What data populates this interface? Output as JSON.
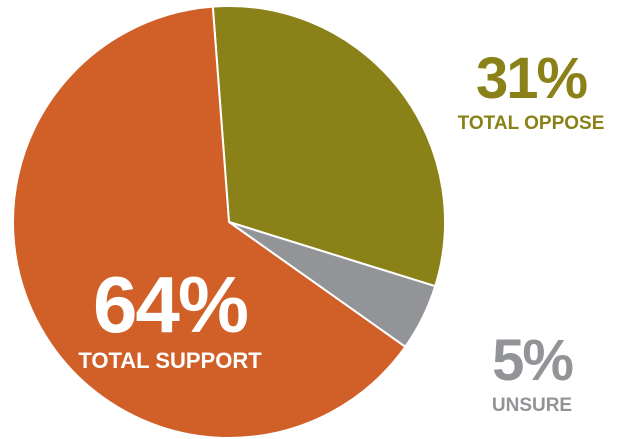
{
  "chart_data": {
    "type": "pie",
    "title": "",
    "slices": [
      {
        "name": "TOTAL OPPOSE",
        "label": "31%",
        "value": 31,
        "color": "#8A8118"
      },
      {
        "name": "UNSURE",
        "label": "5%",
        "value": 5,
        "color": "#929497"
      },
      {
        "name": "TOTAL SUPPORT",
        "label": "64%",
        "value": 64,
        "color": "#D05F28"
      }
    ],
    "start_angle_deg": -4.3,
    "direction": "clockwise",
    "slice_border_color": "#ffffff"
  }
}
